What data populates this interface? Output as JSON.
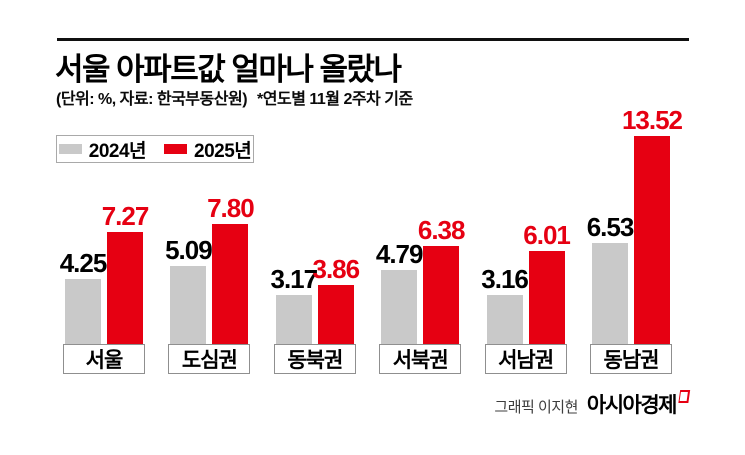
{
  "header": {
    "title": "서울 아파트값 얼마나 올랐나",
    "subtitle_unit": "(단위: %, 자료: 한국부동산원)",
    "subtitle_note": "*연도별 11월 2주차 기준"
  },
  "legend": {
    "items": [
      {
        "label": "2024년",
        "color": "#c9c9c9"
      },
      {
        "label": "2025년",
        "color": "#e60012"
      }
    ]
  },
  "chart_data": {
    "type": "bar",
    "title": "서울 아파트값 얼마나 올랐나",
    "unit_label": "(단위: %, 자료: 한국부동산원)",
    "note": "*연도별 11월 2주차 기준",
    "categories": [
      "서울",
      "도심권",
      "동북권",
      "서북권",
      "서남권",
      "동남권"
    ],
    "series": [
      {
        "name": "2024년",
        "color": "#c9c9c9",
        "label_color": "#000000",
        "values": [
          4.25,
          5.09,
          3.17,
          4.79,
          3.16,
          6.53
        ]
      },
      {
        "name": "2025년",
        "color": "#e60012",
        "label_color": "#e60012",
        "values": [
          7.27,
          7.8,
          3.86,
          6.38,
          6.01,
          13.52
        ]
      }
    ],
    "ylim": [
      0,
      14
    ],
    "grid": false,
    "value_labels": true,
    "legend_position": "top-left"
  },
  "footer": {
    "credit": "그래픽 이지현",
    "brand": "아시아경제"
  },
  "colors": {
    "accent_red": "#e60012",
    "bar_gray": "#c9c9c9",
    "rule_black": "#101010"
  }
}
